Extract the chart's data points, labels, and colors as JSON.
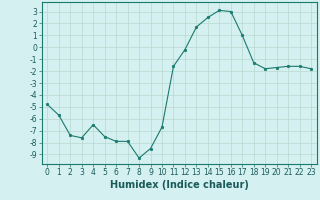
{
  "x": [
    0,
    1,
    2,
    3,
    4,
    5,
    6,
    7,
    8,
    9,
    10,
    11,
    12,
    13,
    14,
    15,
    16,
    17,
    18,
    19,
    20,
    21,
    22,
    23
  ],
  "y": [
    -4.8,
    -5.7,
    -7.4,
    -7.6,
    -6.5,
    -7.5,
    -7.9,
    -7.9,
    -9.3,
    -8.5,
    -6.7,
    -1.6,
    -0.2,
    1.7,
    2.5,
    3.1,
    3.0,
    1.0,
    -1.3,
    -1.8,
    -1.7,
    -1.6,
    -1.6,
    -1.8
  ],
  "xlabel": "Humidex (Indice chaleur)",
  "xlim": [
    -0.5,
    23.5
  ],
  "ylim": [
    -9.8,
    3.8
  ],
  "yticks": [
    3,
    2,
    1,
    0,
    -1,
    -2,
    -3,
    -4,
    -5,
    -6,
    -7,
    -8,
    -9
  ],
  "xticks": [
    0,
    1,
    2,
    3,
    4,
    5,
    6,
    7,
    8,
    9,
    10,
    11,
    12,
    13,
    14,
    15,
    16,
    17,
    18,
    19,
    20,
    21,
    22,
    23
  ],
  "line_color": "#1a7a6e",
  "marker_color": "#1a7a6e",
  "bg_color": "#d4f0f0",
  "grid_color": "#b8d8d0",
  "tick_label_fontsize": 5.5,
  "xlabel_fontsize": 7.0
}
